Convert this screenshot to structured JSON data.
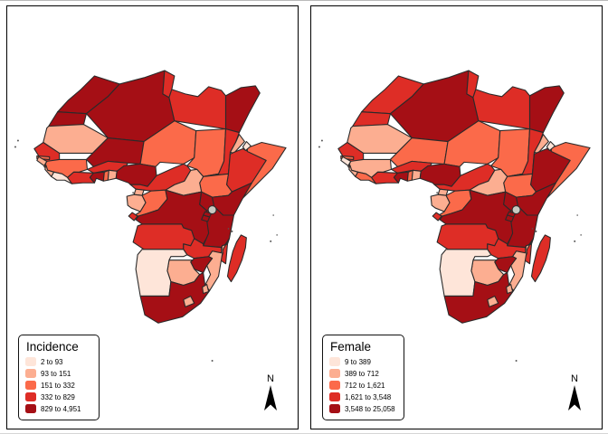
{
  "panels": [
    {
      "legend_title": "Incidence",
      "north_label": "N",
      "legend_items": [
        {
          "label": "2 to 93",
          "color": "#fee5d9"
        },
        {
          "label": "93 to 151",
          "color": "#fcae91"
        },
        {
          "label": "151 to 332",
          "color": "#fb6a4a"
        },
        {
          "label": "332 to 829",
          "color": "#de2d26"
        },
        {
          "label": "829 to 4,951",
          "color": "#a50f15"
        }
      ]
    },
    {
      "legend_title": "Female",
      "north_label": "N",
      "legend_items": [
        {
          "label": "9 to 389",
          "color": "#fee5d9"
        },
        {
          "label": "389 to 712",
          "color": "#fcae91"
        },
        {
          "label": "712 to 1,621",
          "color": "#fb6a4a"
        },
        {
          "label": "1,621 to 3,548",
          "color": "#de2d26"
        },
        {
          "label": "3,548 to 25,058",
          "color": "#a50f15"
        }
      ]
    }
  ],
  "chart_data": [
    {
      "type": "choropleth",
      "region": "Africa",
      "title": "Incidence",
      "legend_position": "bottom-left",
      "classes": [
        "2 to 93",
        "93 to 151",
        "151 to 332",
        "332 to 829",
        "829 to 4,951"
      ],
      "palette": [
        "#fee5d9",
        "#fcae91",
        "#fb6a4a",
        "#de2d26",
        "#a50f15"
      ],
      "country_classes": {
        "Morocco": 5,
        "Western Sahara": 5,
        "Algeria": 5,
        "Tunisia": 4,
        "Libya": 4,
        "Egypt": 5,
        "Mauritania": 2,
        "Senegal": 4,
        "Gambia": 3,
        "Guinea-Bissau": 2,
        "Guinea": 3,
        "Sierra Leone": 2,
        "Liberia": 1,
        "Cote d'Ivoire": 4,
        "Mali": 5,
        "Burkina Faso": 4,
        "Ghana": 5,
        "Togo": 3,
        "Benin": 2,
        "Niger": 3,
        "Nigeria": 5,
        "Chad": 3,
        "Sudan": 4,
        "Eritrea": 2,
        "Djibouti": 1,
        "Ethiopia": 4,
        "Somalia": 3,
        "South Sudan": 3,
        "Central African Republic": 2,
        "Cameroon": 4,
        "Equatorial Guinea": 2,
        "Gabon": 2,
        "Congo": 3,
        "DR Congo": 5,
        "Uganda": 5,
        "Kenya": 5,
        "Rwanda": 5,
        "Burundi": 5,
        "Tanzania": 5,
        "Angola": 4,
        "Zambia": 4,
        "Malawi": 4,
        "Mozambique": 2,
        "Zimbabwe": 5,
        "Botswana": 2,
        "Namibia": 1,
        "South Africa": 5,
        "Lesotho": 2,
        "Eswatini": 2,
        "Madagascar": 4
      }
    },
    {
      "type": "choropleth",
      "region": "Africa",
      "title": "Female",
      "legend_position": "bottom-left",
      "classes": [
        "9 to 389",
        "389 to 712",
        "712 to 1,621",
        "1,621 to 3,548",
        "3,548 to 25,058"
      ],
      "palette": [
        "#fee5d9",
        "#fcae91",
        "#fb6a4a",
        "#de2d26",
        "#a50f15"
      ],
      "country_classes": {
        "Morocco": 4,
        "Western Sahara": 4,
        "Algeria": 5,
        "Tunisia": 4,
        "Libya": 4,
        "Egypt": 5,
        "Mauritania": 2,
        "Senegal": 4,
        "Gambia": 3,
        "Guinea-Bissau": 1,
        "Guinea": 2,
        "Sierra Leone": 2,
        "Liberia": 3,
        "Cote d'Ivoire": 4,
        "Mali": 3,
        "Burkina Faso": 4,
        "Ghana": 5,
        "Togo": 3,
        "Benin": 2,
        "Niger": 3,
        "Nigeria": 5,
        "Chad": 3,
        "Sudan": 4,
        "Eritrea": 2,
        "Djibouti": 1,
        "Ethiopia": 5,
        "Somalia": 3,
        "South Sudan": 3,
        "Central African Republic": 2,
        "Cameroon": 4,
        "Equatorial Guinea": 2,
        "Gabon": 2,
        "Congo": 3,
        "DR Congo": 5,
        "Uganda": 5,
        "Kenya": 5,
        "Rwanda": 5,
        "Burundi": 5,
        "Tanzania": 5,
        "Angola": 4,
        "Zambia": 4,
        "Malawi": 4,
        "Mozambique": 2,
        "Zimbabwe": 5,
        "Botswana": 2,
        "Namibia": 1,
        "South Africa": 5,
        "Lesotho": 2,
        "Eswatini": 2,
        "Madagascar": 4
      }
    }
  ]
}
